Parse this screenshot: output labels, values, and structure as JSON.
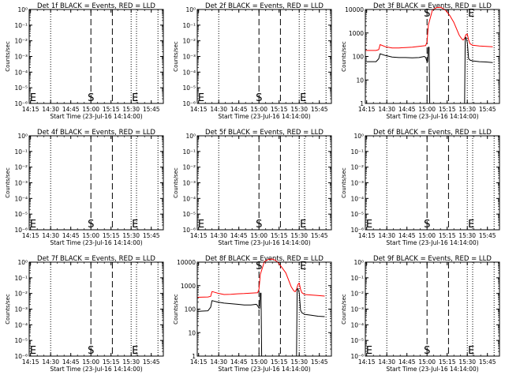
{
  "window_width": 640,
  "window_height": 480,
  "colors": {
    "events": "#000000",
    "lld": "#ff0000",
    "axis": "#000000",
    "background": "#ffffff"
  },
  "common": {
    "xlabel": "Start Time (23-Jul-16 14:14:00)",
    "ylabel": "Counts/sec",
    "xticks": [
      "14:15",
      "14:30",
      "14:45",
      "15:00",
      "15:15",
      "15:30",
      "15:45"
    ],
    "xtick_minutes": [
      1,
      16,
      31,
      46,
      61,
      76,
      91
    ],
    "xlim_minutes": [
      0,
      100
    ],
    "markers": [
      {
        "label": "S",
        "minute": 46,
        "style": "dashed"
      },
      {
        "label": "E",
        "minute": 76,
        "style": "dotted"
      }
    ],
    "extra_dashed_minute": 62,
    "dotted_minutes": [
      16,
      80,
      96
    ],
    "empty_yticks": [
      "10⁰",
      "10⁻¹",
      "10⁻²",
      "10⁻³",
      "10⁻⁴",
      "10⁻⁵",
      "10⁻⁶"
    ],
    "data_yticks": [
      "1",
      "10",
      "100",
      "1000",
      "10000"
    ]
  },
  "chart_data": [
    {
      "type": "line",
      "title": "Det 1f BLACK = Events, RED = LLD",
      "yscale": "log",
      "ylim": [
        1e-06,
        1
      ],
      "has_data": false,
      "series": []
    },
    {
      "type": "line",
      "title": "Det 2f BLACK = Events, RED = LLD",
      "yscale": "log",
      "ylim": [
        1e-06,
        1
      ],
      "has_data": false,
      "series": []
    },
    {
      "type": "line",
      "title": "Det 3f BLACK = Events, RED = LLD",
      "yscale": "log",
      "ylim": [
        1,
        10000
      ],
      "has_data": true,
      "series": [
        {
          "color": "lld",
          "x": [
            0,
            8,
            10,
            11,
            15,
            20,
            25,
            30,
            35,
            40,
            45,
            46,
            47,
            50,
            53,
            56,
            58,
            60,
            63,
            66,
            70,
            72,
            73,
            74,
            75,
            76,
            77,
            78,
            80,
            85,
            90,
            95
          ],
          "y": [
            180,
            180,
            195,
            320,
            260,
            230,
            230,
            240,
            250,
            270,
            290,
            420,
            2200,
            9500,
            12000,
            12500,
            11000,
            9000,
            5500,
            2800,
            800,
            550,
            500,
            600,
            850,
            900,
            500,
            350,
            300,
            280,
            270,
            260
          ]
        },
        {
          "color": "events",
          "x": [
            0,
            8,
            10,
            11,
            15,
            20,
            25,
            30,
            35,
            40,
            44,
            45,
            46,
            46.5,
            47,
            47.5,
            48,
            50,
            55,
            60,
            65,
            70,
            72,
            73,
            73.5,
            74,
            74.5,
            75,
            76,
            77,
            78,
            80,
            85,
            90,
            95
          ],
          "y": [
            60,
            60,
            80,
            130,
            110,
            95,
            90,
            90,
            88,
            90,
            100,
            90,
            60,
            60,
            250,
            250,
            1,
            1,
            1,
            1,
            1,
            1,
            1,
            1,
            1,
            1,
            600,
            650,
            400,
            80,
            70,
            65,
            60,
            58,
            55
          ]
        }
      ]
    },
    {
      "type": "line",
      "title": "Det 4f BLACK = Events, RED = LLD",
      "yscale": "log",
      "ylim": [
        1e-06,
        1
      ],
      "has_data": false,
      "series": []
    },
    {
      "type": "line",
      "title": "Det 5f BLACK = Events, RED = LLD",
      "yscale": "log",
      "ylim": [
        1e-06,
        1
      ],
      "has_data": false,
      "series": []
    },
    {
      "type": "line",
      "title": "Det 6f BLACK = Events, RED = LLD",
      "yscale": "log",
      "ylim": [
        1e-06,
        1
      ],
      "has_data": false,
      "series": []
    },
    {
      "type": "line",
      "title": "Det 7f BLACK = Events, RED = LLD",
      "yscale": "log",
      "ylim": [
        1e-06,
        1
      ],
      "has_data": false,
      "series": []
    },
    {
      "type": "line",
      "title": "Det 8f BLACK = Events, RED = LLD",
      "yscale": "log",
      "ylim": [
        1,
        10000
      ],
      "has_data": true,
      "series": [
        {
          "color": "lld",
          "x": [
            0,
            8,
            10,
            11,
            15,
            20,
            25,
            30,
            35,
            40,
            45,
            46,
            47,
            50,
            53,
            56,
            58,
            60,
            63,
            66,
            70,
            72,
            73,
            74,
            75,
            76,
            77,
            78,
            80,
            85,
            90,
            95
          ],
          "y": [
            320,
            330,
            350,
            560,
            480,
            420,
            430,
            450,
            460,
            480,
            500,
            700,
            3000,
            10500,
            13000,
            13500,
            12000,
            10000,
            6000,
            3500,
            900,
            600,
            550,
            700,
            1100,
            1300,
            700,
            500,
            420,
            400,
            380,
            360
          ]
        },
        {
          "color": "events",
          "x": [
            0,
            8,
            10,
            11,
            15,
            20,
            25,
            30,
            35,
            40,
            44,
            45,
            46,
            46.5,
            47,
            47.5,
            48,
            50,
            55,
            60,
            65,
            70,
            72,
            73,
            73.5,
            74,
            74.5,
            75,
            76,
            77,
            78,
            80,
            85,
            90,
            95
          ],
          "y": [
            80,
            85,
            120,
            230,
            200,
            180,
            170,
            160,
            150,
            150,
            160,
            140,
            110,
            110,
            480,
            480,
            1,
            1,
            1,
            1,
            1,
            1,
            1,
            1,
            1,
            1,
            700,
            750,
            500,
            90,
            70,
            60,
            55,
            50,
            48
          ]
        }
      ]
    },
    {
      "type": "line",
      "title": "Det 9f BLACK = Events, RED = LLD",
      "yscale": "log",
      "ylim": [
        1e-06,
        1
      ],
      "has_data": false,
      "series": []
    }
  ]
}
